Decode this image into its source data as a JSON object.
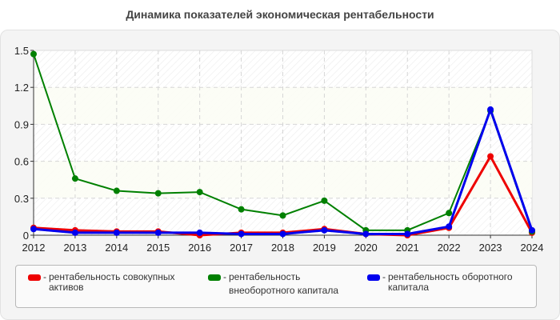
{
  "chart_data": {
    "type": "line",
    "title": "Динамика показателей экономическая рентабельности",
    "xlabel": "",
    "ylabel": "",
    "categories": [
      "2012",
      "2013",
      "2014",
      "2015",
      "2016",
      "2017",
      "2018",
      "2019",
      "2020",
      "2021",
      "2022",
      "2023",
      "2024"
    ],
    "ylim": [
      0,
      1.5
    ],
    "yticks": [
      "0",
      "0.3",
      "0.6",
      "0.9",
      "1.2",
      "1.5"
    ],
    "grid": true,
    "legend_position": "bottom",
    "series": [
      {
        "name": "рентабельность совокупных активов",
        "color": "#ee0000",
        "values": [
          0.06,
          0.04,
          0.03,
          0.03,
          0.0,
          0.02,
          0.02,
          0.05,
          0.01,
          0.0,
          0.06,
          0.64,
          0.02
        ]
      },
      {
        "name": "рентабельность внеоборотного капитала",
        "color": "#008000",
        "values": [
          1.47,
          0.46,
          0.36,
          0.34,
          0.35,
          0.21,
          0.16,
          0.28,
          0.04,
          0.04,
          0.18,
          1.01,
          0.03
        ]
      },
      {
        "name": "рентабельность оборотного капитала",
        "color": "#0000ee",
        "values": [
          0.05,
          0.02,
          0.02,
          0.02,
          0.02,
          0.01,
          0.01,
          0.04,
          0.01,
          0.01,
          0.07,
          1.02,
          0.04
        ]
      }
    ]
  },
  "legend": {
    "items": [
      {
        "dash": "-",
        "line1": "рентабельность совокупных",
        "line2": "активов"
      },
      {
        "dash": "-",
        "line1": "рентабельность",
        "line2": "внеоборотного капитала"
      },
      {
        "dash": "-",
        "line1": "рентабельность оборотного",
        "line2": "капитала"
      }
    ]
  }
}
